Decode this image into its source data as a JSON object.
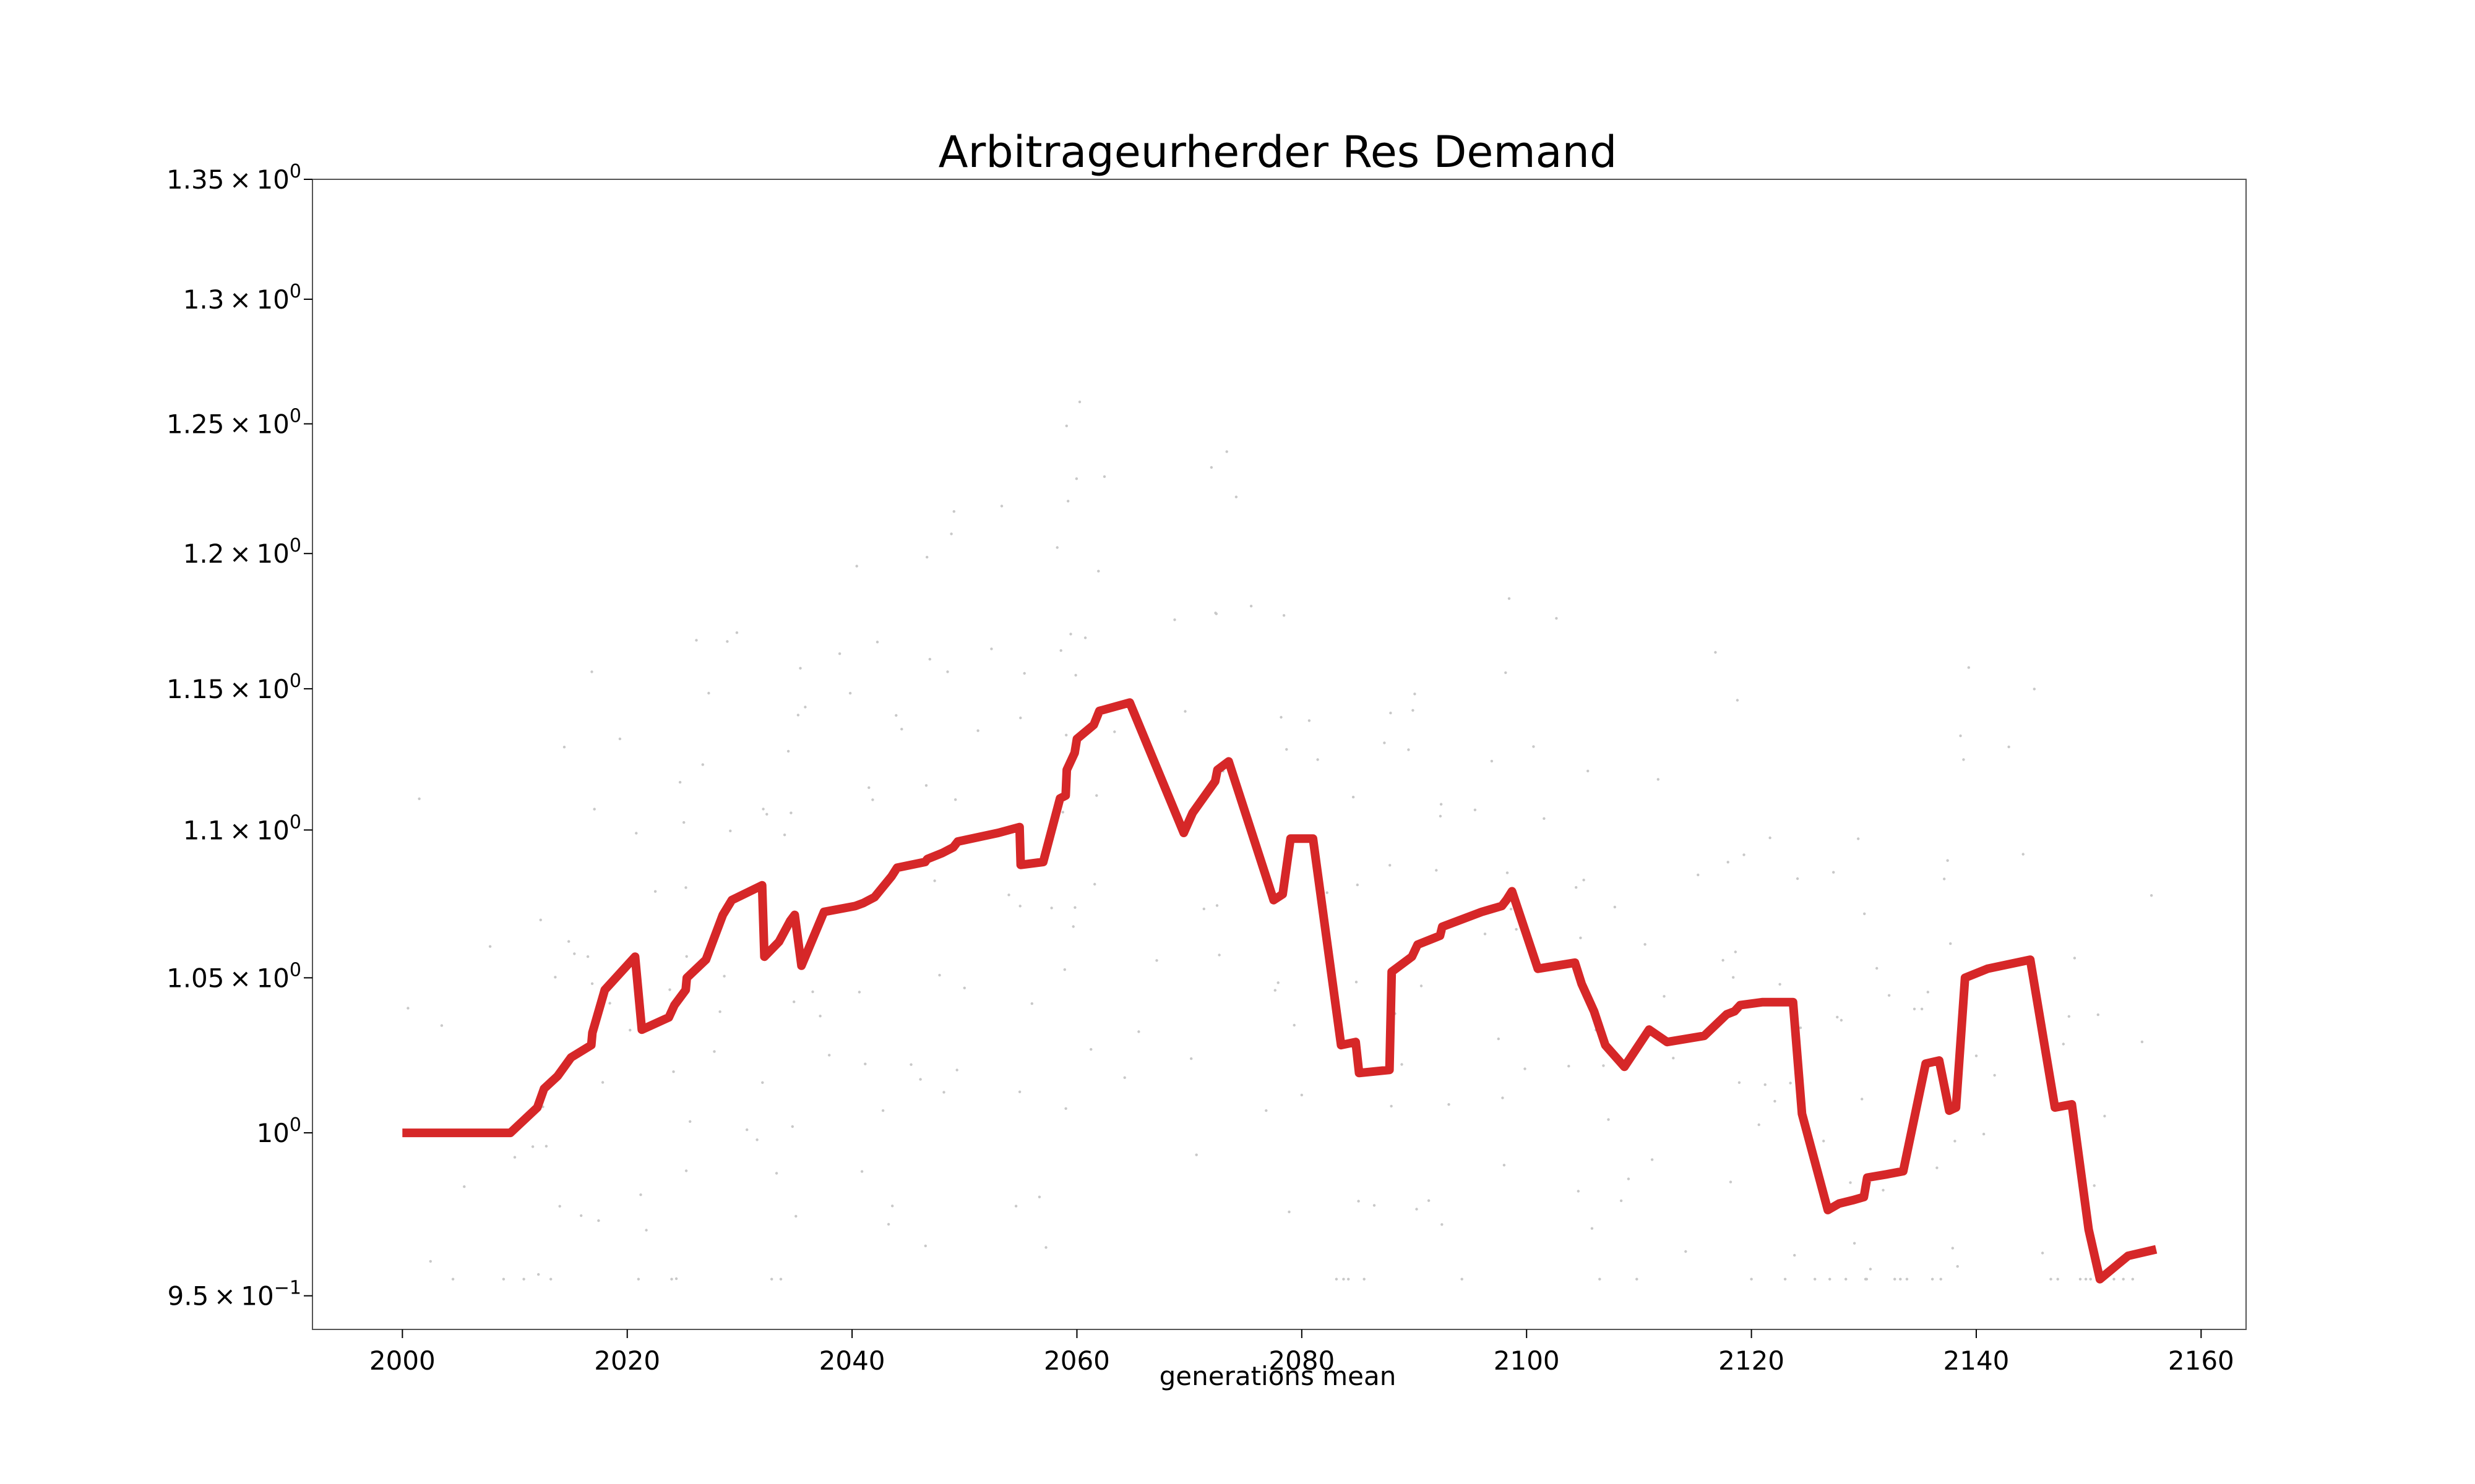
{
  "chart_data": {
    "type": "line",
    "title": "Arbitrageurherder Res Demand",
    "xlabel": "generations mean",
    "ylabel": "",
    "y_scale": "log",
    "xlim": [
      1992,
      2164
    ],
    "ylim": [
      0.94,
      1.35
    ],
    "grid": false,
    "x_ticks": [
      {
        "value": 2000,
        "label": "2000"
      },
      {
        "value": 2020,
        "label": "2020"
      },
      {
        "value": 2040,
        "label": "2040"
      },
      {
        "value": 2060,
        "label": "2060"
      },
      {
        "value": 2080,
        "label": "2080"
      },
      {
        "value": 2100,
        "label": "2100"
      },
      {
        "value": 2120,
        "label": "2120"
      },
      {
        "value": 2140,
        "label": "2140"
      },
      {
        "value": 2160,
        "label": "2160"
      }
    ],
    "y_ticks": [
      {
        "value": 0.95,
        "mant": "9.5",
        "exp": "−1"
      },
      {
        "value": 1.0,
        "mant": "",
        "exp": "0"
      },
      {
        "value": 1.05,
        "mant": "1.05",
        "exp": "0"
      },
      {
        "value": 1.1,
        "mant": "1.1",
        "exp": "0"
      },
      {
        "value": 1.15,
        "mant": "1.15",
        "exp": "0"
      },
      {
        "value": 1.2,
        "mant": "1.2",
        "exp": "0"
      },
      {
        "value": 1.25,
        "mant": "1.25",
        "exp": "0"
      },
      {
        "value": 1.3,
        "mant": "1.3",
        "exp": "0"
      },
      {
        "value": 1.35,
        "mant": "1.35",
        "exp": "0"
      }
    ],
    "line_color": "#d62728",
    "scatter_color": "#c8c8c8",
    "series": [
      {
        "x": [
          2000,
          2003,
          2006,
          2009.6,
          2012,
          2012.6,
          2013.8,
          2015,
          2016.8,
          2016.9,
          2018,
          2020.7,
          2021.3,
          2023.7,
          2024.2,
          2025.2,
          2025.3,
          2027,
          2028.5,
          2029.3,
          2032,
          2032.2,
          2033.5,
          2034.5,
          2034.9,
          2035.5,
          2037.5,
          2040.3,
          2041,
          2042,
          2043.5,
          2044,
          2046.5,
          2046.7,
          2048,
          2049,
          2049.4,
          2053,
          2054.9,
          2055,
          2057,
          2058.5,
          2059,
          2059.1,
          2059.8,
          2060,
          2061.5,
          2062,
          2064.7,
          2069.5,
          2070.3,
          2072.3,
          2072.5,
          2073.5,
          2077.5,
          2078.3,
          2079,
          2081,
          2083.5,
          2084.8,
          2085.1,
          2087.8,
          2088,
          2089.8,
          2090.3,
          2092.3,
          2092.5,
          2096,
          2097.8,
          2098.2,
          2098.7,
          2101,
          2104.3,
          2104.9,
          2106,
          2107,
          2108.7,
          2110.9,
          2112.5,
          2115.8,
          2117.8,
          2118.5,
          2119,
          2121,
          2122.3,
          2123.7,
          2124.5,
          2126.8,
          2127.8,
          2129,
          2130,
          2130.3,
          2132,
          2133.5,
          2135.5,
          2136.7,
          2137.6,
          2138.2,
          2139,
          2141,
          2144.8,
          2147,
          2148.5,
          2150,
          2151,
          2153.5,
          2156
        ],
        "y": [
          1.0,
          1.0,
          1.0,
          1.0,
          1.008,
          1.014,
          1.018,
          1.024,
          1.028,
          1.032,
          1.046,
          1.057,
          1.033,
          1.037,
          1.041,
          1.046,
          1.05,
          1.056,
          1.071,
          1.076,
          1.081,
          1.057,
          1.062,
          1.069,
          1.071,
          1.054,
          1.072,
          1.074,
          1.075,
          1.077,
          1.084,
          1.087,
          1.089,
          1.09,
          1.092,
          1.094,
          1.096,
          1.099,
          1.101,
          1.088,
          1.089,
          1.111,
          1.112,
          1.121,
          1.127,
          1.132,
          1.137,
          1.142,
          1.145,
          1.099,
          1.106,
          1.117,
          1.121,
          1.124,
          1.076,
          1.078,
          1.097,
          1.097,
          1.028,
          1.029,
          1.019,
          1.02,
          1.052,
          1.057,
          1.061,
          1.064,
          1.067,
          1.072,
          1.074,
          1.076,
          1.079,
          1.053,
          1.055,
          1.048,
          1.039,
          1.028,
          1.021,
          1.033,
          1.029,
          1.031,
          1.038,
          1.039,
          1.041,
          1.042,
          1.042,
          1.042,
          1.006,
          0.976,
          0.978,
          0.979,
          0.98,
          0.986,
          0.987,
          0.988,
          1.022,
          1.023,
          1.007,
          1.008,
          1.05,
          1.053,
          1.056,
          1.008,
          1.009,
          0.97,
          0.955,
          0.962,
          0.964
        ]
      }
    ]
  }
}
